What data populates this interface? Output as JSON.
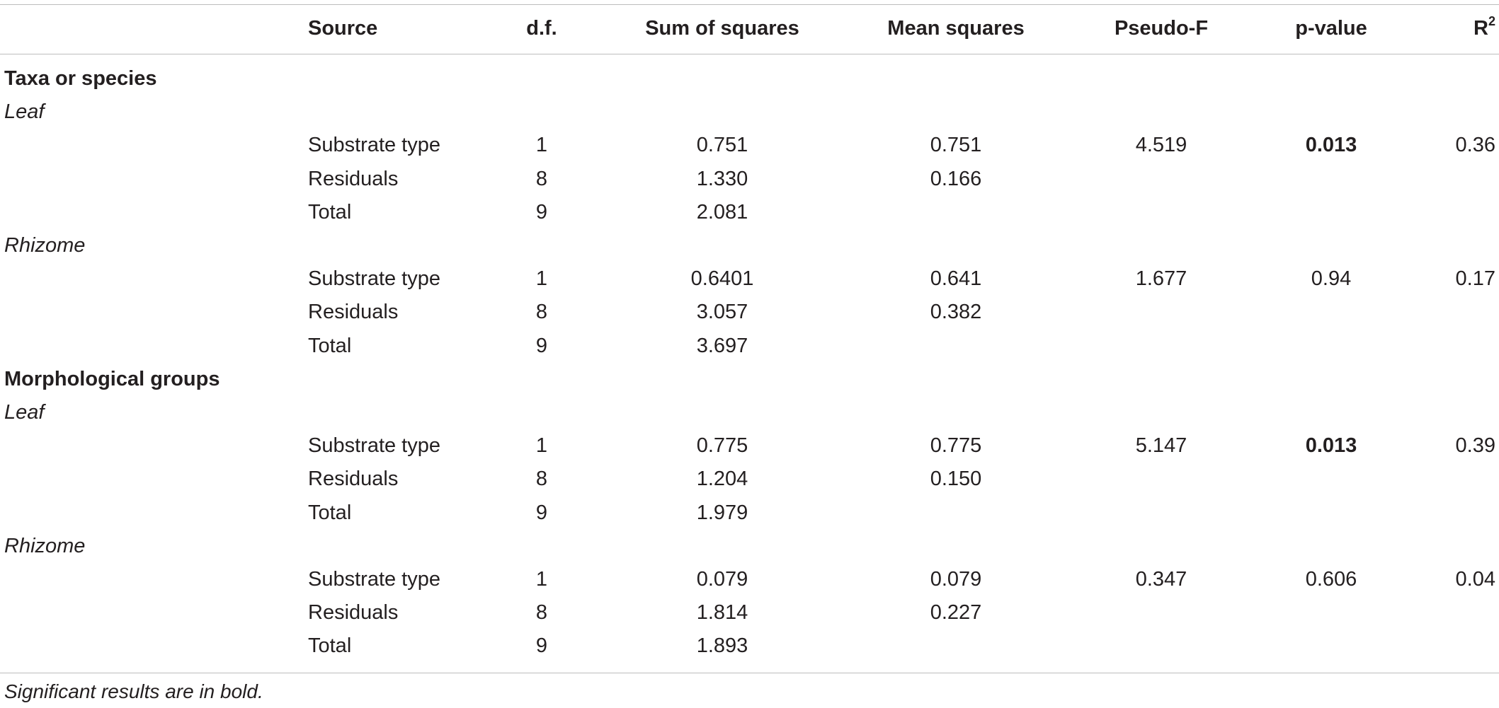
{
  "table": {
    "headers": {
      "col0": "",
      "source": "Source",
      "df": "d.f.",
      "ss": "Sum of squares",
      "ms": "Mean squares",
      "pf": "Pseudo-F",
      "pv": "p-value",
      "r2_base": "R",
      "r2_sup": "2"
    },
    "sections": [
      {
        "title": "Taxa or species",
        "subsections": [
          {
            "title": "Leaf",
            "rows": [
              {
                "source": "Substrate type",
                "df": "1",
                "ss": "0.751",
                "ms": "0.751",
                "pf": "4.519",
                "pv": "0.013",
                "pv_bold": true,
                "r2": "0.36"
              },
              {
                "source": "Residuals",
                "df": "8",
                "ss": "1.330",
                "ms": "0.166",
                "pf": "",
                "pv": "",
                "r2": ""
              },
              {
                "source": "Total",
                "df": "9",
                "ss": "2.081",
                "ms": "",
                "pf": "",
                "pv": "",
                "r2": ""
              }
            ]
          },
          {
            "title": "Rhizome",
            "rows": [
              {
                "source": "Substrate type",
                "df": "1",
                "ss": "0.6401",
                "ms": "0.641",
                "pf": "1.677",
                "pv": "0.94",
                "pv_bold": false,
                "r2": "0.17"
              },
              {
                "source": "Residuals",
                "df": "8",
                "ss": "3.057",
                "ms": "0.382",
                "pf": "",
                "pv": "",
                "r2": ""
              },
              {
                "source": "Total",
                "df": "9",
                "ss": "3.697",
                "ms": "",
                "pf": "",
                "pv": "",
                "r2": ""
              }
            ]
          }
        ]
      },
      {
        "title": "Morphological groups",
        "subsections": [
          {
            "title": "Leaf",
            "rows": [
              {
                "source": "Substrate type",
                "df": "1",
                "ss": "0.775",
                "ms": "0.775",
                "pf": "5.147",
                "pv": "0.013",
                "pv_bold": true,
                "r2": "0.39"
              },
              {
                "source": "Residuals",
                "df": "8",
                "ss": "1.204",
                "ms": "0.150",
                "pf": "",
                "pv": "",
                "r2": ""
              },
              {
                "source": "Total",
                "df": "9",
                "ss": "1.979",
                "ms": "",
                "pf": "",
                "pv": "",
                "r2": ""
              }
            ]
          },
          {
            "title": "Rhizome",
            "rows": [
              {
                "source": "Substrate type",
                "df": "1",
                "ss": "0.079",
                "ms": "0.079",
                "pf": "0.347",
                "pv": "0.606",
                "pv_bold": false,
                "r2": "0.04"
              },
              {
                "source": "Residuals",
                "df": "8",
                "ss": "1.814",
                "ms": "0.227",
                "pf": "",
                "pv": "",
                "r2": ""
              },
              {
                "source": "Total",
                "df": "9",
                "ss": "1.893",
                "ms": "",
                "pf": "",
                "pv": "",
                "r2": ""
              }
            ]
          }
        ]
      }
    ],
    "footnote": "Significant results are in bold."
  }
}
